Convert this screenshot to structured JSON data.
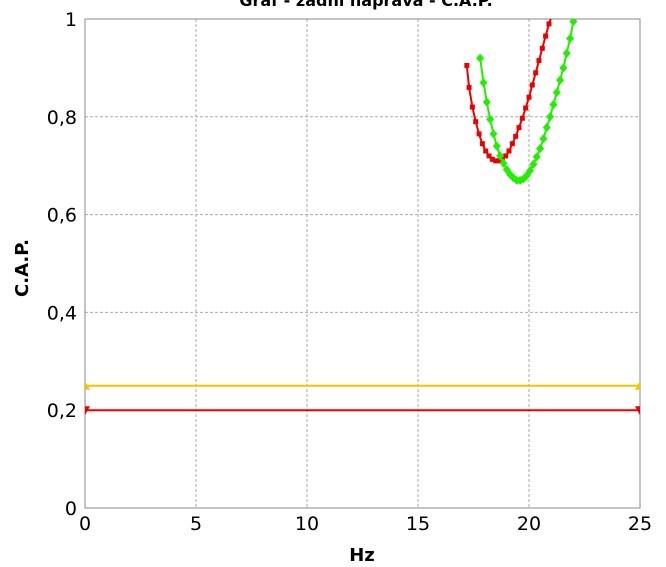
{
  "chart_data": {
    "type": "line",
    "title": "Graf - zadní náprava - C.A.P.",
    "xlabel": "Hz",
    "ylabel": "C.A.P.",
    "xlim": [
      0,
      25
    ],
    "ylim": [
      0,
      1
    ],
    "grid": true,
    "x_ticks": [
      "0",
      "5",
      "10",
      "15",
      "20",
      "25"
    ],
    "y_ticks": [
      "0",
      "0,2",
      "0,4",
      "0,6",
      "0,8",
      "1"
    ],
    "series": [
      {
        "color": "#ee0000",
        "marker": "square",
        "x": [
          17.2,
          17.3,
          17.45,
          17.6,
          17.75,
          17.9,
          18.05,
          18.2,
          18.35,
          18.5,
          18.65,
          18.8,
          18.95,
          19.1,
          19.25,
          19.4,
          19.55,
          19.7,
          19.85,
          20.0,
          20.15,
          20.3,
          20.45,
          20.6,
          20.75,
          20.9,
          21.05
        ],
        "y": [
          0.905,
          0.86,
          0.82,
          0.79,
          0.765,
          0.745,
          0.73,
          0.72,
          0.713,
          0.71,
          0.71,
          0.713,
          0.72,
          0.73,
          0.745,
          0.76,
          0.778,
          0.797,
          0.818,
          0.84,
          0.865,
          0.89,
          0.915,
          0.94,
          0.965,
          0.99,
          1.01
        ]
      },
      {
        "color": "#22ee00",
        "marker": "diamond",
        "x": [
          17.8,
          17.95,
          18.1,
          18.25,
          18.4,
          18.55,
          18.7,
          18.85,
          19.0,
          19.15,
          19.3,
          19.45,
          19.6,
          19.75,
          19.9,
          20.05,
          20.2,
          20.35,
          20.5,
          20.65,
          20.8,
          20.95,
          21.1,
          21.25,
          21.4,
          21.55,
          21.7,
          21.85,
          22.0
        ],
        "y": [
          0.92,
          0.87,
          0.83,
          0.795,
          0.765,
          0.74,
          0.72,
          0.705,
          0.692,
          0.682,
          0.675,
          0.67,
          0.67,
          0.673,
          0.68,
          0.69,
          0.703,
          0.718,
          0.735,
          0.755,
          0.778,
          0.8,
          0.825,
          0.85,
          0.875,
          0.9,
          0.93,
          0.96,
          0.995
        ]
      },
      {
        "color": "#f5c400",
        "marker": "triangle-up",
        "x": [
          0,
          25
        ],
        "y": [
          0.25,
          0.25
        ]
      },
      {
        "color": "#ee0000",
        "marker": "triangle-down",
        "x": [
          0,
          25
        ],
        "y": [
          0.2,
          0.2
        ]
      }
    ]
  }
}
